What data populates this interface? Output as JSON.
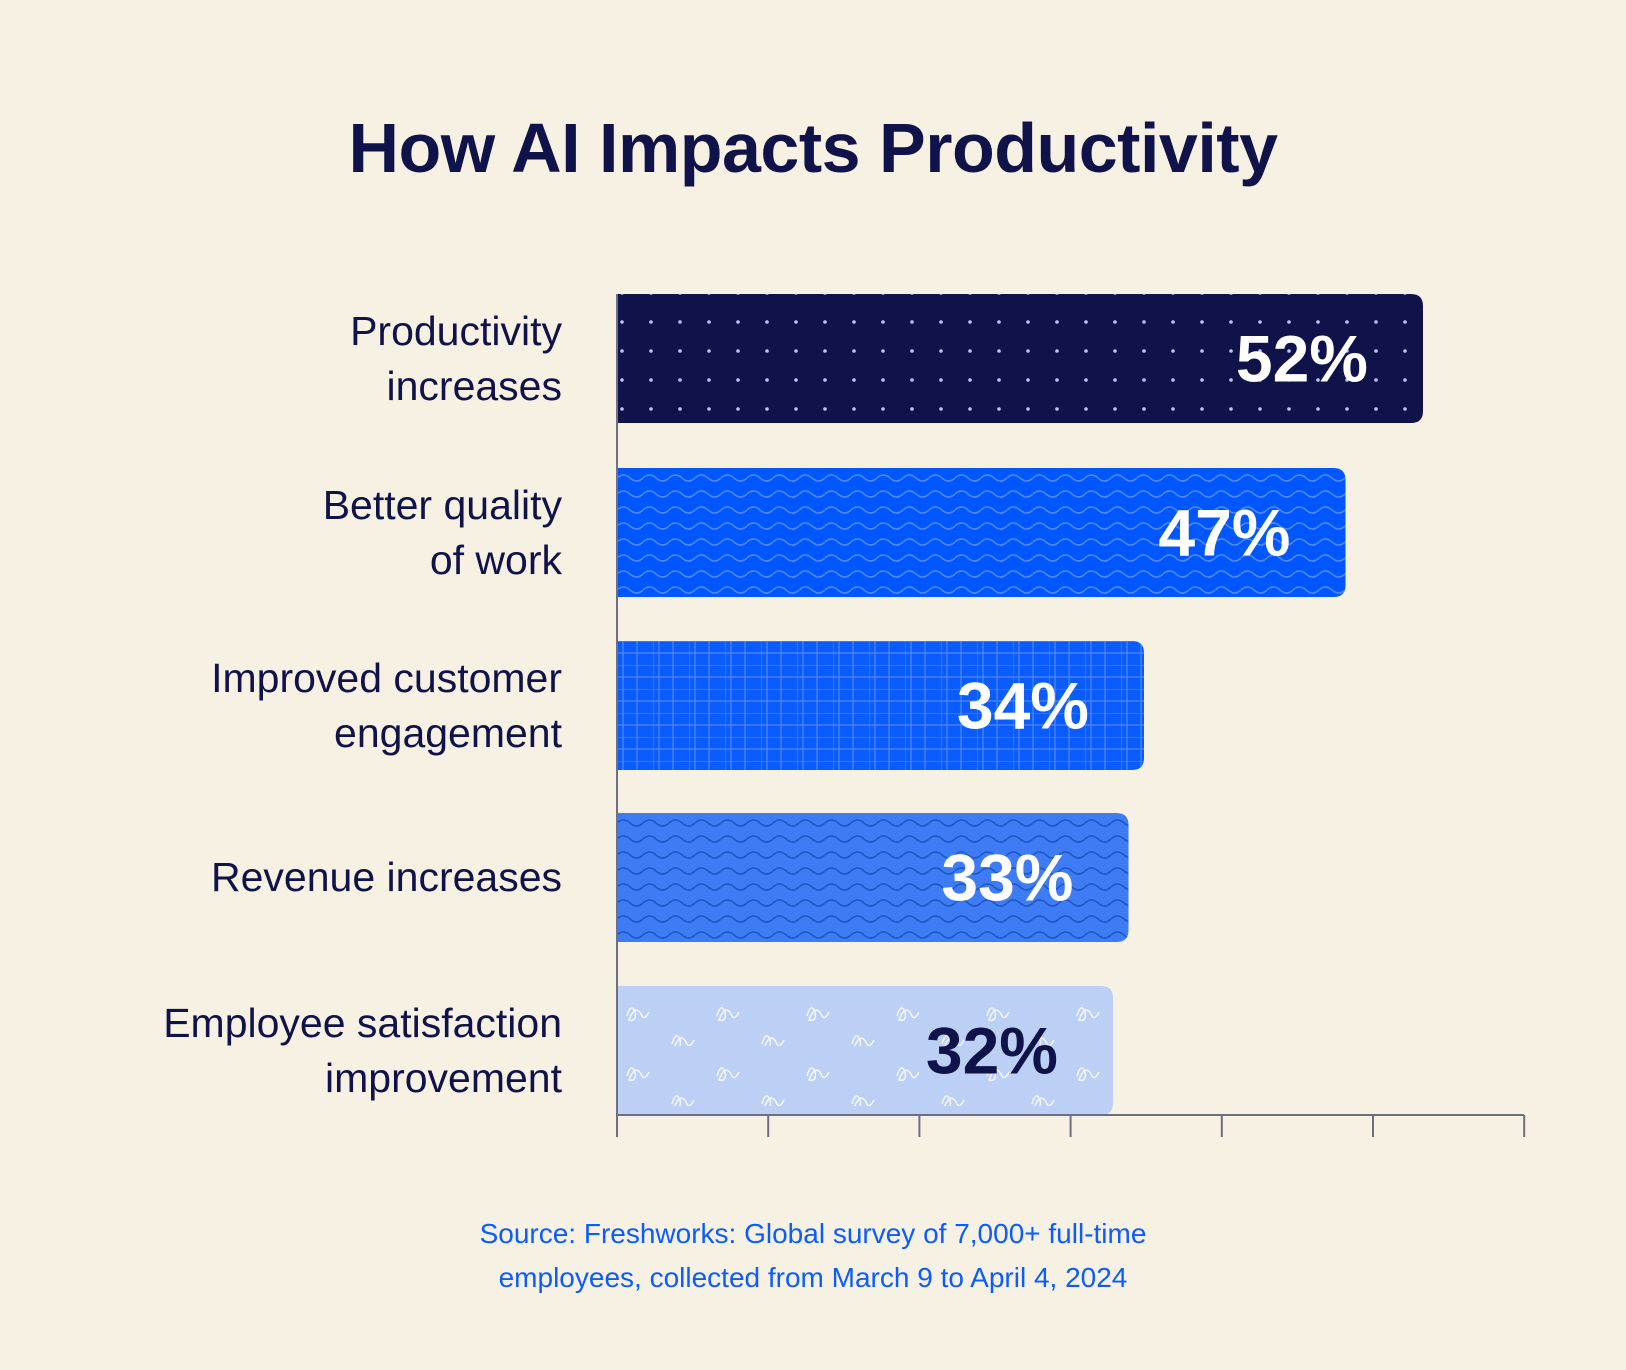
{
  "title": "How AI Impacts Productivity",
  "source": [
    "Source: Freshworks: Global survey of 7,000+ full-time",
    "employees, collected from March 9 to April 4, 2024"
  ],
  "chart_data": {
    "type": "bar",
    "orientation": "horizontal",
    "title": "How AI Impacts Productivity",
    "categories": [
      [
        "Productivity",
        "increases"
      ],
      [
        "Better quality",
        "of work"
      ],
      [
        "Improved customer",
        "engagement"
      ],
      [
        "Revenue increases"
      ],
      [
        "Employee satisfaction",
        "improvement"
      ]
    ],
    "values": [
      52,
      47,
      34,
      33,
      32
    ],
    "value_labels": [
      "52%",
      "47%",
      "34%",
      "33%",
      "32%"
    ],
    "unit": "%",
    "xlim": [
      0,
      60
    ],
    "grid": false,
    "legend": "none",
    "bar_colors": [
      "#10134a",
      "#0057ff",
      "#0a5cff",
      "#3d7cf5",
      "#bcd0f5"
    ],
    "bar_patterns": [
      "dots",
      "waves",
      "grid",
      "waves",
      "squiggles"
    ],
    "value_label_colors": [
      "#ffffff",
      "#ffffff",
      "#ffffff",
      "#ffffff",
      "#10134a"
    ]
  }
}
